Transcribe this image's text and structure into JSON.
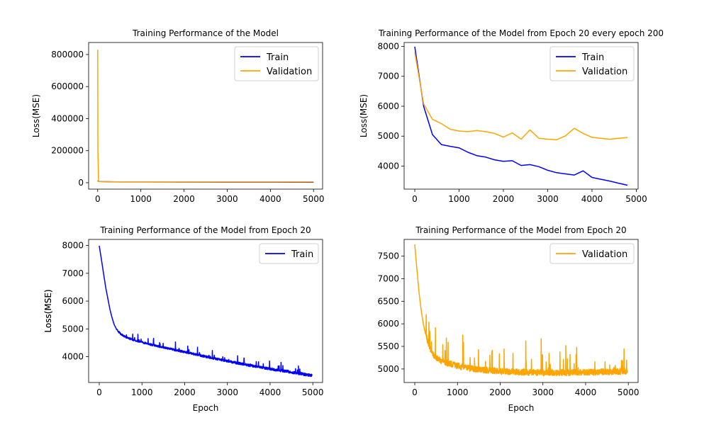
{
  "colors": {
    "train": "#0000ff",
    "validation": "#ffa500"
  },
  "chart_data": [
    {
      "id": "full",
      "type": "line",
      "title": "Training Performance of the Model",
      "xlabel": "",
      "ylabel": "Loss(MSE)",
      "xlim": [
        -210,
        5210
      ],
      "ylim": [
        -40000,
        875000
      ],
      "xticks": [
        0,
        1000,
        2000,
        3000,
        4000,
        5000
      ],
      "xtick_labels": [
        "0",
        "1000",
        "2000",
        "3000",
        "4000",
        "5000"
      ],
      "yticks": [
        0,
        200000,
        400000,
        600000,
        800000
      ],
      "ytick_labels": [
        "0",
        "200000",
        "400000",
        "600000",
        "800000"
      ],
      "legend": "top-right",
      "series": [
        {
          "name": "Train",
          "color_key": "train",
          "x": [
            0,
            20,
            100,
            500,
            1000,
            2000,
            3000,
            4000,
            5000
          ],
          "y": [
            12000,
            8000,
            7000,
            4800,
            4600,
            4200,
            3900,
            3600,
            3300
          ]
        },
        {
          "name": "Validation",
          "color_key": "validation",
          "x": [
            0,
            5,
            20,
            100,
            500,
            1000,
            2000,
            3000,
            4000,
            5000
          ],
          "y": [
            830000,
            200000,
            7800,
            7000,
            5500,
            5200,
            5000,
            4900,
            4950,
            4950
          ]
        }
      ]
    },
    {
      "id": "every200",
      "type": "line",
      "title": "Training Performance of the Model from Epoch 20 every epoch 200",
      "xlabel": "",
      "ylabel": "Loss(MSE)",
      "xlim": [
        -240,
        5040
      ],
      "ylim": [
        3230,
        8130
      ],
      "xticks": [
        0,
        1000,
        2000,
        3000,
        4000,
        5000
      ],
      "xtick_labels": [
        "0",
        "1000",
        "2000",
        "3000",
        "4000",
        "5000"
      ],
      "yticks": [
        4000,
        5000,
        6000,
        7000,
        8000
      ],
      "ytick_labels": [
        "4000",
        "5000",
        "6000",
        "7000",
        "8000"
      ],
      "legend": "top-right",
      "series": [
        {
          "name": "Train",
          "color_key": "train",
          "x": [
            0,
            200,
            400,
            600,
            800,
            1000,
            1200,
            1400,
            1600,
            1800,
            2000,
            2200,
            2400,
            2600,
            2800,
            3000,
            3200,
            3400,
            3600,
            3800,
            4000,
            4200,
            4400,
            4600,
            4800
          ],
          "y": [
            7990,
            6000,
            5050,
            4720,
            4660,
            4610,
            4460,
            4350,
            4300,
            4210,
            4160,
            4180,
            4020,
            4050,
            3980,
            3860,
            3780,
            3740,
            3700,
            3840,
            3620,
            3560,
            3500,
            3430,
            3360
          ]
        },
        {
          "name": "Validation",
          "color_key": "validation",
          "x": [
            0,
            200,
            400,
            600,
            800,
            1000,
            1200,
            1400,
            1600,
            1800,
            2000,
            2200,
            2400,
            2600,
            2800,
            3000,
            3200,
            3400,
            3600,
            3800,
            4000,
            4200,
            4400,
            4600,
            4800
          ],
          "y": [
            7800,
            6080,
            5560,
            5420,
            5230,
            5170,
            5150,
            5190,
            5150,
            5090,
            4970,
            5110,
            4900,
            5210,
            4930,
            4900,
            4880,
            5010,
            5260,
            5090,
            4960,
            4930,
            4900,
            4930,
            4950
          ]
        }
      ]
    },
    {
      "id": "train20",
      "type": "line",
      "title": "Training Performance of the Model from Epoch 20",
      "xlabel": "Epoch",
      "ylabel": "Loss(MSE)",
      "xlim": [
        -249,
        5229
      ],
      "ylim": [
        3070,
        8220
      ],
      "xticks": [
        0,
        1000,
        2000,
        3000,
        4000,
        5000
      ],
      "xtick_labels": [
        "0",
        "1000",
        "2000",
        "3000",
        "4000",
        "5000"
      ],
      "yticks": [
        4000,
        5000,
        6000,
        7000,
        8000
      ],
      "ytick_labels": [
        "4000",
        "5000",
        "6000",
        "7000",
        "8000"
      ],
      "legend": "top-right",
      "series": [
        {
          "name": "Train",
          "color_key": "train",
          "x": [
            0,
            50,
            100,
            150,
            200,
            250,
            300,
            350,
            400,
            450,
            500,
            600,
            700,
            800,
            1000,
            1200,
            1500,
            2000,
            2500,
            3000,
            3500,
            4000,
            4500,
            4980
          ],
          "y": [
            7990,
            7500,
            7000,
            6500,
            6100,
            5700,
            5400,
            5150,
            5000,
            4900,
            4820,
            4720,
            4650,
            4600,
            4520,
            4440,
            4330,
            4170,
            4000,
            3840,
            3690,
            3560,
            3440,
            3320
          ]
        }
      ]
    },
    {
      "id": "val20",
      "type": "line",
      "title": "Training Performance of the Model from Epoch 20",
      "xlabel": "Epoch",
      "ylabel": "Loss(MSE)",
      "xlim": [
        -249,
        5229
      ],
      "ylim": [
        4700,
        7870
      ],
      "xticks": [
        0,
        1000,
        2000,
        3000,
        4000,
        5000
      ],
      "xtick_labels": [
        "0",
        "1000",
        "2000",
        "3000",
        "4000",
        "5000"
      ],
      "yticks": [
        5000,
        5500,
        6000,
        6500,
        7000,
        7500
      ],
      "ytick_labels": [
        "5000",
        "5500",
        "6000",
        "6500",
        "7000",
        "7500"
      ],
      "legend": "top-right",
      "series": [
        {
          "name": "Validation",
          "color_key": "validation",
          "x": [
            0,
            50,
            100,
            150,
            200,
            250,
            300,
            350,
            400,
            450,
            500,
            600,
            700,
            800,
            1000,
            1200,
            1500,
            2000,
            2500,
            3000,
            3500,
            4000,
            4500,
            4980
          ],
          "y": [
            7760,
            7200,
            6700,
            6300,
            6000,
            5780,
            5600,
            5450,
            5350,
            5280,
            5230,
            5170,
            5120,
            5090,
            5040,
            5000,
            4960,
            4920,
            4900,
            4890,
            4890,
            4900,
            4910,
            4920
          ]
        }
      ]
    }
  ]
}
